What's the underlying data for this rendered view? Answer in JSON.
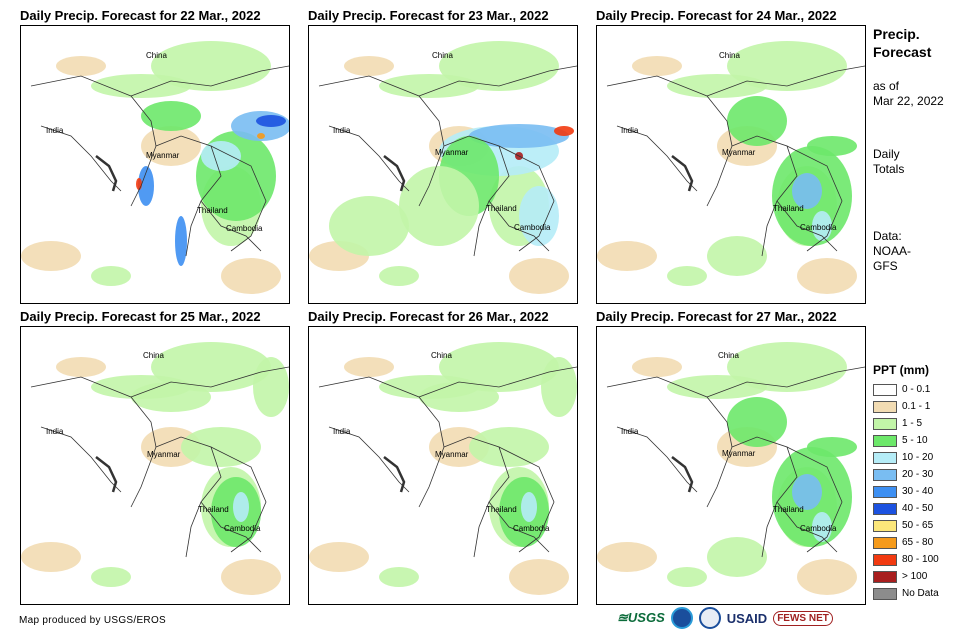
{
  "panels": [
    {
      "title": "Daily Precip. Forecast for 22 Mar., 2022",
      "labels": {
        "china": "China",
        "india": "India",
        "myanmar": "Myanmar",
        "thailand": "Thailand",
        "cambodia": "Cambodia"
      },
      "intensity": "wet-west"
    },
    {
      "title": "Daily Precip. Forecast for 23 Mar., 2022",
      "labels": {
        "china": "China",
        "india": "India",
        "myanmar": "Myanmar",
        "thailand": "Thailand",
        "cambodia": "Cambodia"
      },
      "intensity": "wet-north"
    },
    {
      "title": "Daily Precip. Forecast for 24 Mar., 2022",
      "labels": {
        "china": "China",
        "india": "India",
        "myanmar": "Myanmar",
        "thailand": "Thailand",
        "cambodia": "Cambodia"
      },
      "intensity": "moderate-east"
    },
    {
      "title": "Daily Precip. Forecast for 25 Mar., 2022",
      "labels": {
        "china": "China",
        "india": "India",
        "myanmar": "Myanmar",
        "thailand": "Thailand",
        "cambodia": "Cambodia"
      },
      "intensity": "light"
    },
    {
      "title": "Daily Precip. Forecast for 26 Mar., 2022",
      "labels": {
        "china": "China",
        "india": "India",
        "myanmar": "Myanmar",
        "thailand": "Thailand",
        "cambodia": "Cambodia"
      },
      "intensity": "light"
    },
    {
      "title": "Daily Precip. Forecast for 27 Mar., 2022",
      "labels": {
        "china": "China",
        "india": "India",
        "myanmar": "Myanmar",
        "thailand": "Thailand",
        "cambodia": "Cambodia"
      },
      "intensity": "moderate-east"
    }
  ],
  "sidebar": {
    "title_line1": "Precip.",
    "title_line2": "Forecast",
    "asof_line1": "as of",
    "asof_line2": "Mar 22, 2022",
    "totals_line1": "Daily",
    "totals_line2": "Totals",
    "data_line1": "Data:",
    "data_line2": "NOAA-",
    "data_line3": "GFS"
  },
  "legend": {
    "title": "PPT (mm)",
    "items": [
      {
        "label": "0 - 0.1",
        "color": "#ffffff"
      },
      {
        "label": "0.1 - 1",
        "color": "#f2dcb3"
      },
      {
        "label": "1 - 5",
        "color": "#c2f5a8"
      },
      {
        "label": "5 - 10",
        "color": "#6de86a"
      },
      {
        "label": "10 - 20",
        "color": "#b5ecf7"
      },
      {
        "label": "20 - 30",
        "color": "#79bdf2"
      },
      {
        "label": "30 - 40",
        "color": "#3d8ff2"
      },
      {
        "label": "40 - 50",
        "color": "#1c52e0"
      },
      {
        "label": "50 - 65",
        "color": "#fce77a"
      },
      {
        "label": "65 - 80",
        "color": "#f59a1b"
      },
      {
        "label": "80 - 100",
        "color": "#f23a10"
      },
      {
        "label": "> 100",
        "color": "#a81e1e"
      },
      {
        "label": "No Data",
        "color": "#8c8c8c"
      }
    ]
  },
  "footer": {
    "credit": "Map produced by USGS/EROS"
  },
  "logos": {
    "usgs": "≊USGS",
    "usaid": "USAID",
    "fews": "FEWS NET"
  }
}
